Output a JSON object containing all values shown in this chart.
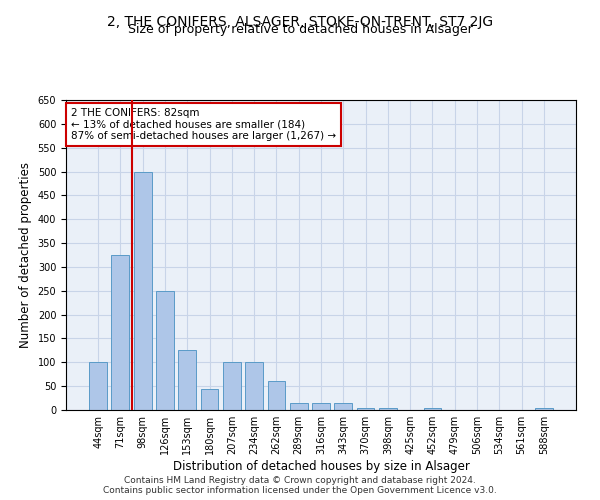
{
  "title_line1": "2, THE CONIFERS, ALSAGER, STOKE-ON-TRENT, ST7 2JG",
  "title_line2": "Size of property relative to detached houses in Alsager",
  "xlabel": "Distribution of detached houses by size in Alsager",
  "ylabel": "Number of detached properties",
  "categories": [
    "44sqm",
    "71sqm",
    "98sqm",
    "126sqm",
    "153sqm",
    "180sqm",
    "207sqm",
    "234sqm",
    "262sqm",
    "289sqm",
    "316sqm",
    "343sqm",
    "370sqm",
    "398sqm",
    "425sqm",
    "452sqm",
    "479sqm",
    "506sqm",
    "534sqm",
    "561sqm",
    "588sqm"
  ],
  "values": [
    100,
    325,
    500,
    250,
    125,
    45,
    100,
    100,
    60,
    15,
    15,
    15,
    5,
    5,
    0,
    5,
    0,
    0,
    0,
    0,
    5
  ],
  "bar_color": "#aec6e8",
  "bar_edge_color": "#5a9bc8",
  "grid_color": "#c8d4e8",
  "background_color": "#eaf0f8",
  "vline_color": "#cc0000",
  "vline_x": 1.5,
  "annotation_text": "2 THE CONIFERS: 82sqm\n← 13% of detached houses are smaller (184)\n87% of semi-detached houses are larger (1,267) →",
  "annotation_box_edge": "#cc0000",
  "ylim": [
    0,
    650
  ],
  "yticks": [
    0,
    50,
    100,
    150,
    200,
    250,
    300,
    350,
    400,
    450,
    500,
    550,
    600,
    650
  ],
  "footer_line1": "Contains HM Land Registry data © Crown copyright and database right 2024.",
  "footer_line2": "Contains public sector information licensed under the Open Government Licence v3.0.",
  "title_fontsize": 10,
  "subtitle_fontsize": 9,
  "axis_label_fontsize": 8.5,
  "tick_fontsize": 7,
  "annotation_fontsize": 7.5,
  "footer_fontsize": 6.5
}
